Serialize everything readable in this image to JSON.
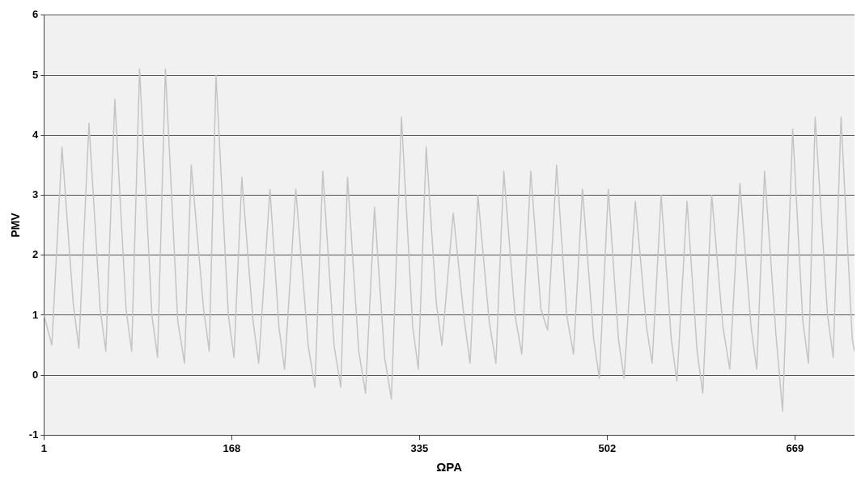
{
  "chart_data": {
    "type": "line",
    "xlabel": "ΩΡΑ",
    "ylabel": "PMV",
    "x": [
      1,
      8,
      17,
      27,
      32,
      41,
      51,
      56,
      64,
      74,
      79,
      86,
      97,
      102,
      109,
      120,
      126,
      132,
      143,
      148,
      154,
      165,
      170,
      177,
      187,
      192,
      202,
      210,
      215,
      225,
      236,
      242,
      249,
      259,
      265,
      271,
      281,
      287,
      295,
      304,
      310,
      319,
      329,
      334,
      341,
      350,
      355,
      365,
      375,
      380,
      387,
      397,
      403,
      410,
      420,
      426,
      434,
      443,
      449,
      457,
      466,
      472,
      480,
      490,
      495,
      503,
      512,
      517,
      527,
      537,
      542,
      550,
      559,
      564,
      573,
      582,
      587,
      595,
      605,
      611,
      620,
      630,
      635,
      642,
      652,
      658,
      667,
      676,
      681,
      687,
      698,
      703,
      710,
      720,
      722
    ],
    "series": [
      {
        "color": "#c4c4c4",
        "values": [
          1.0,
          0.5,
          3.8,
          1.2,
          0.45,
          4.2,
          1.1,
          0.4,
          4.6,
          1.1,
          0.4,
          5.1,
          1.0,
          0.3,
          5.1,
          0.9,
          0.2,
          3.5,
          1.1,
          0.4,
          5.0,
          1.0,
          0.3,
          3.3,
          0.9,
          0.2,
          3.1,
          0.8,
          0.1,
          3.1,
          0.5,
          -0.2,
          3.4,
          0.5,
          -0.2,
          3.3,
          0.4,
          -0.3,
          2.8,
          0.3,
          -0.4,
          4.3,
          0.8,
          0.1,
          3.8,
          1.2,
          0.5,
          2.7,
          0.9,
          0.2,
          3.0,
          0.9,
          0.2,
          3.4,
          1.0,
          0.35,
          3.4,
          1.1,
          0.75,
          3.5,
          1.0,
          0.35,
          3.1,
          0.6,
          -0.05,
          3.1,
          0.6,
          -0.05,
          2.9,
          0.8,
          0.2,
          3.0,
          0.6,
          -0.1,
          2.9,
          0.4,
          -0.3,
          3.0,
          0.8,
          0.1,
          3.2,
          0.8,
          0.1,
          3.4,
          0.7,
          -0.6,
          4.1,
          0.9,
          0.2,
          4.3,
          1.0,
          0.3,
          4.3,
          0.6,
          0.4
        ]
      }
    ],
    "xlim": [
      1,
      722
    ],
    "xticks": [
      1,
      168,
      335,
      502,
      669
    ],
    "ylim": [
      -1,
      6
    ],
    "yticks": [
      -1,
      0,
      1,
      2,
      3,
      4,
      5,
      6
    ],
    "grid": "y",
    "legend": false,
    "marker": "none",
    "line_style": "solid"
  }
}
